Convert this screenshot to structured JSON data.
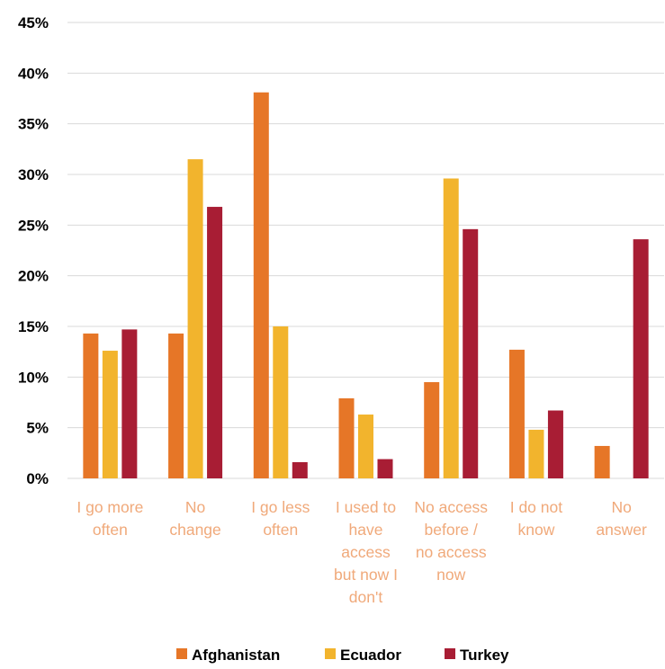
{
  "chart_data": {
    "type": "bar",
    "title": "",
    "xlabel": "",
    "ylabel": "",
    "ylim": [
      0,
      45
    ],
    "yticks": [
      "0%",
      "5%",
      "10%",
      "15%",
      "20%",
      "25%",
      "30%",
      "35%",
      "40%",
      "45%"
    ],
    "grid": true,
    "legend_position": "bottom",
    "categories": [
      [
        "I go more",
        "often"
      ],
      [
        "No",
        "change"
      ],
      [
        "I go less",
        "often"
      ],
      [
        "I used to",
        "have",
        "access",
        "but now I",
        "don't"
      ],
      [
        "No access",
        "before /",
        "no access",
        "now"
      ],
      [
        "I do not",
        "know"
      ],
      [
        "No",
        "answer"
      ]
    ],
    "series": [
      {
        "name": "Afghanistan",
        "color": "#e67627",
        "values": [
          14.3,
          14.3,
          38.1,
          7.9,
          9.5,
          12.7,
          3.2
        ]
      },
      {
        "name": "Ecuador",
        "color": "#f2b42d",
        "values": [
          12.6,
          31.5,
          15.0,
          6.3,
          29.6,
          4.8,
          0
        ]
      },
      {
        "name": "Turkey",
        "color": "#a81d34",
        "values": [
          14.7,
          26.8,
          1.6,
          1.9,
          24.6,
          6.7,
          23.6
        ]
      }
    ],
    "category_label_color": "#f0a97a"
  }
}
